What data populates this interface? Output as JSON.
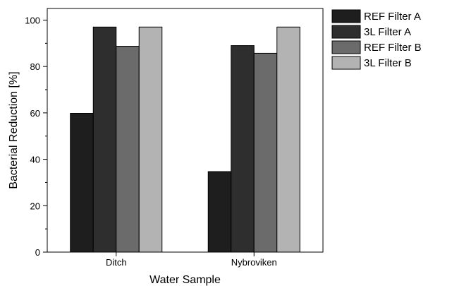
{
  "chart_data": {
    "type": "bar",
    "categories": [
      "Ditch",
      "Nybroviken"
    ],
    "series": [
      {
        "name": "REF Filter A",
        "values": [
          59.8,
          34.7
        ],
        "color": "#1e1e1e"
      },
      {
        "name": "3L Filter A",
        "values": [
          97.0,
          89.0
        ],
        "color": "#2e2e2e"
      },
      {
        "name": "REF Filter B",
        "values": [
          88.7,
          85.7
        ],
        "color": "#6b6b6b"
      },
      {
        "name": "3L Filter B",
        "values": [
          97.0,
          97.0
        ],
        "color": "#b3b3b3"
      }
    ],
    "xlabel": "Water Sample",
    "ylabel": "Bacterial Reduction [%]",
    "ylim": [
      0,
      105
    ],
    "yticks": [
      0,
      20,
      40,
      60,
      80,
      100
    ],
    "grid": false,
    "legend": "top-right, outside plot"
  }
}
